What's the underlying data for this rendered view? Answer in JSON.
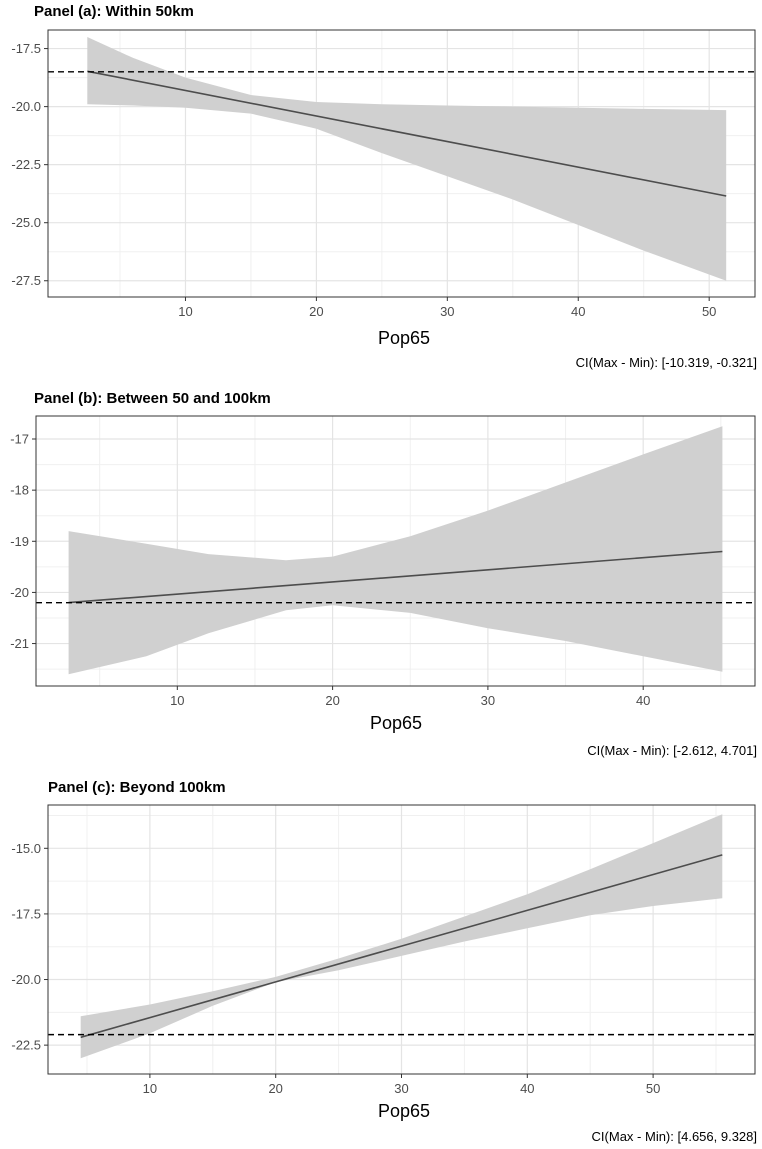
{
  "chart_data": [
    {
      "type": "line",
      "title": "Panel (a): Within 50km",
      "xlabel": "Pop65",
      "ylabel": "",
      "caption": "CI(Max - Min): [-10.319, -0.321]",
      "xlim": [
        -0.5,
        53.5
      ],
      "ylim": [
        -28.2,
        -16.7
      ],
      "xticks": [
        10,
        20,
        30,
        40,
        50
      ],
      "xtick_labels": [
        "10",
        "20",
        "30",
        "40",
        "50"
      ],
      "yticks": [
        -17.5,
        -20.0,
        -22.5,
        -25.0,
        -27.5
      ],
      "ytick_labels": [
        "-17.5",
        "-20.0",
        "-22.5",
        "-25.0",
        "-27.5"
      ],
      "reference_line": -18.5,
      "grid": true,
      "series": [
        {
          "name": "estimate",
          "x": [
            2.5,
            51.3
          ],
          "y": [
            -18.48,
            -23.85
          ]
        },
        {
          "name": "ci_upper",
          "x": [
            2.5,
            6,
            10,
            15,
            20,
            25,
            30,
            35,
            40,
            45,
            51.3
          ],
          "y": [
            -17.0,
            -17.9,
            -18.75,
            -19.5,
            -19.8,
            -19.9,
            -19.95,
            -20.0,
            -20.05,
            -20.1,
            -20.15
          ]
        },
        {
          "name": "ci_lower",
          "x": [
            2.5,
            6,
            10,
            15,
            20,
            25,
            30,
            35,
            40,
            45,
            51.3
          ],
          "y": [
            -19.9,
            -19.95,
            -20.05,
            -20.3,
            -20.95,
            -22.0,
            -23.0,
            -24.0,
            -25.1,
            -26.2,
            -27.5
          ]
        }
      ]
    },
    {
      "type": "line",
      "title": "Panel (b): Between 50 and 100km",
      "xlabel": "Pop65",
      "ylabel": "",
      "caption": "CI(Max - Min): [-2.612, 4.701]",
      "xlim": [
        0.9,
        47.2
      ],
      "ylim": [
        -21.83,
        -16.55
      ],
      "xticks": [
        10,
        20,
        30,
        40
      ],
      "xtick_labels": [
        "10",
        "20",
        "30",
        "40"
      ],
      "yticks": [
        -17,
        -18,
        -19,
        -20,
        -21
      ],
      "ytick_labels": [
        "-17",
        "-18",
        "-19",
        "-20",
        "-21"
      ],
      "reference_line": -20.2,
      "grid": true,
      "series": [
        {
          "name": "estimate",
          "x": [
            3,
            45.1
          ],
          "y": [
            -20.2,
            -19.2
          ]
        },
        {
          "name": "ci_upper",
          "x": [
            3,
            8,
            12,
            17,
            20,
            25,
            30,
            35,
            40,
            45.1
          ],
          "y": [
            -18.8,
            -19.05,
            -19.25,
            -19.37,
            -19.3,
            -18.9,
            -18.4,
            -17.85,
            -17.3,
            -16.75
          ]
        },
        {
          "name": "ci_lower",
          "x": [
            3,
            8,
            12,
            17,
            20,
            25,
            30,
            35,
            40,
            45.1
          ],
          "y": [
            -21.6,
            -21.25,
            -20.8,
            -20.35,
            -20.25,
            -20.4,
            -20.7,
            -20.95,
            -21.25,
            -21.55
          ]
        }
      ]
    },
    {
      "type": "line",
      "title": "Panel (c): Beyond 100km",
      "xlabel": "Pop65",
      "ylabel": "",
      "caption": "CI(Max - Min): [4.656, 9.328]",
      "xlim": [
        1.9,
        58.1
      ],
      "ylim": [
        -23.6,
        -13.35
      ],
      "xticks": [
        10,
        20,
        30,
        40,
        50
      ],
      "xtick_labels": [
        "10",
        "20",
        "30",
        "40",
        "50"
      ],
      "yticks": [
        -15.0,
        -17.5,
        -20.0,
        -22.5
      ],
      "ytick_labels": [
        "-15.0",
        "-17.5",
        "-20.0",
        "-22.5"
      ],
      "reference_line": -22.1,
      "grid": true,
      "series": [
        {
          "name": "estimate",
          "x": [
            4.5,
            55.5
          ],
          "y": [
            -22.2,
            -15.25
          ]
        },
        {
          "name": "ci_upper",
          "x": [
            4.5,
            10,
            15,
            20,
            25,
            30,
            35,
            40,
            45,
            50,
            55.5
          ],
          "y": [
            -21.4,
            -20.95,
            -20.45,
            -19.9,
            -19.2,
            -18.45,
            -17.6,
            -16.75,
            -15.8,
            -14.8,
            -13.7
          ]
        },
        {
          "name": "ci_lower",
          "x": [
            4.5,
            10,
            15,
            20,
            25,
            30,
            35,
            40,
            45,
            50,
            55.5
          ],
          "y": [
            -23.0,
            -22.05,
            -21.0,
            -20.1,
            -19.65,
            -19.1,
            -18.55,
            -18.05,
            -17.55,
            -17.2,
            -16.9
          ]
        }
      ]
    }
  ]
}
